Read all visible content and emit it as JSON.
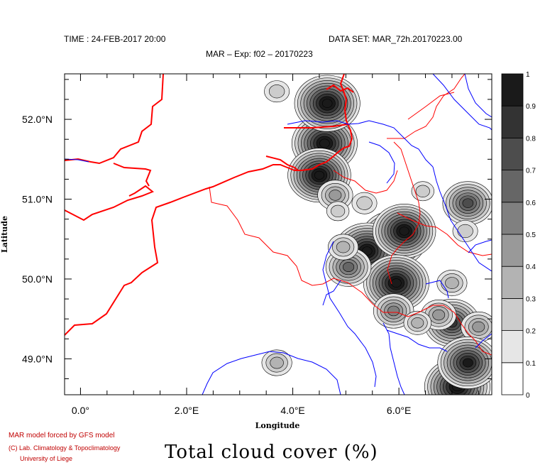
{
  "header": {
    "time": "TIME : 24-FEB-2017 20:00",
    "dataset": "DATA SET: MAR_72h.20170223.00",
    "experiment": "MAR – Exp: f02 – 20170223"
  },
  "chart_data": {
    "type": "heatmap",
    "title": "Total cloud cover (%)",
    "xlabel": "Longitude",
    "ylabel": "Latitude",
    "xlim": [
      -0.3,
      7.75
    ],
    "ylim": [
      48.55,
      52.57
    ],
    "x_ticks": [
      0,
      2,
      4,
      6
    ],
    "x_tick_labels": [
      "0.0°",
      "2.0°E",
      "4.0°E",
      "6.0°E"
    ],
    "y_ticks": [
      49,
      50,
      51,
      52
    ],
    "y_tick_labels": [
      "49.0°N",
      "50.0°N",
      "51.0°N",
      "52.0°N"
    ],
    "colorbar": {
      "levels": [
        0,
        0.1,
        0.2,
        0.3,
        0.4,
        0.5,
        0.6,
        0.7,
        0.8,
        0.9,
        1
      ],
      "labels": [
        "0",
        "0.1",
        "0.2",
        "0.3",
        "0.4",
        "0.5",
        "0.6",
        "0.7",
        "0.8",
        "0.9",
        "1"
      ],
      "colors": [
        "#ffffff",
        "#e6e6e6",
        "#cccccc",
        "#b3b3b3",
        "#999999",
        "#808080",
        "#666666",
        "#4d4d4d",
        "#333333",
        "#1a1a1a"
      ]
    },
    "cloud_cells": [
      {
        "x": 4.6,
        "y": 51.7,
        "value": 1.0
      },
      {
        "x": 4.65,
        "y": 52.2,
        "value": 1.0
      },
      {
        "x": 4.5,
        "y": 51.3,
        "value": 0.95
      },
      {
        "x": 4.8,
        "y": 51.05,
        "value": 0.4
      },
      {
        "x": 4.85,
        "y": 50.85,
        "value": 0.15
      },
      {
        "x": 3.7,
        "y": 52.35,
        "value": 0.2
      },
      {
        "x": 5.9,
        "y": 50.5,
        "value": 1.0
      },
      {
        "x": 5.4,
        "y": 50.35,
        "value": 1.0
      },
      {
        "x": 6.1,
        "y": 50.6,
        "value": 0.95
      },
      {
        "x": 5.95,
        "y": 49.95,
        "value": 1.0
      },
      {
        "x": 5.05,
        "y": 50.15,
        "value": 0.6
      },
      {
        "x": 5.9,
        "y": 49.6,
        "value": 0.5
      },
      {
        "x": 4.95,
        "y": 50.4,
        "value": 0.3
      },
      {
        "x": 7.3,
        "y": 50.95,
        "value": 0.7
      },
      {
        "x": 7.25,
        "y": 50.6,
        "value": 0.2
      },
      {
        "x": 7.0,
        "y": 49.95,
        "value": 0.3
      },
      {
        "x": 7.0,
        "y": 49.45,
        "value": 0.8
      },
      {
        "x": 7.5,
        "y": 49.4,
        "value": 0.4
      },
      {
        "x": 7.1,
        "y": 48.65,
        "value": 1.0
      },
      {
        "x": 7.3,
        "y": 48.95,
        "value": 0.9
      },
      {
        "x": 6.75,
        "y": 49.55,
        "value": 0.4
      },
      {
        "x": 3.7,
        "y": 48.95,
        "value": 0.3
      },
      {
        "x": 6.35,
        "y": 49.45,
        "value": 0.25
      },
      {
        "x": 5.35,
        "y": 50.95,
        "value": 0.2
      },
      {
        "x": 6.45,
        "y": 51.1,
        "value": 0.15
      }
    ]
  },
  "credits": {
    "line1": "MAR model forced by GFS model",
    "line2": "(C) Lab. Climatology & Topoclimatology",
    "line3": "University of Liege"
  },
  "colors": {
    "coast": "#ff0000",
    "border": "#ff0000",
    "river": "#0000ff"
  }
}
